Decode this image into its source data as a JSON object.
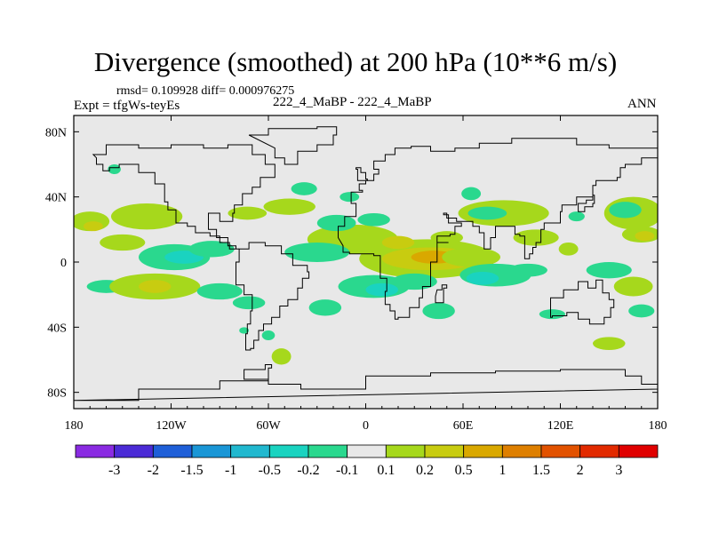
{
  "chart_data": {
    "type": "heatmap",
    "title": "Divergence (smoothed) at 200 hPa (10**6 m/s)",
    "stats_line": "rmsd= 0.109928 diff= 0.000976275",
    "experiment_label": "Expt = tfgWs-teyEs",
    "case_label": "222_4_MaBP - 222_4_MaBP",
    "season_label": "ANN",
    "x_axis": {
      "range": [
        -180,
        180
      ],
      "ticks": [
        -180,
        -120,
        -60,
        0,
        60,
        120,
        180
      ],
      "tick_labels": [
        "180",
        "120W",
        "60W",
        "0",
        "60E",
        "120E",
        "180"
      ]
    },
    "y_axis": {
      "range": [
        -90,
        90
      ],
      "ticks": [
        80,
        40,
        0,
        -40,
        -80
      ],
      "tick_labels": [
        "80N",
        "40N",
        "0",
        "40S",
        "80S"
      ]
    },
    "colorbar": {
      "labels": [
        "-3",
        "-2",
        "-1.5",
        "-1",
        "-0.5",
        "-0.2",
        "-0.1",
        "0.1",
        "0.2",
        "0.5",
        "1",
        "1.5",
        "2",
        "3"
      ],
      "colors": [
        "#8a2be2",
        "#4b2bd6",
        "#1f5fd8",
        "#1a96d6",
        "#21b8cf",
        "#1ad3c0",
        "#2ad88e",
        "#e8e8e8",
        "#a6d81c",
        "#c8cc10",
        "#d9a800",
        "#de7f00",
        "#e25200",
        "#e22a00",
        "#e00000"
      ]
    },
    "field_background": "#e8e8e8",
    "anomaly_patches": [
      {
        "lon": -170,
        "lat": 25,
        "rx": 12,
        "ry": 6,
        "bin": 8
      },
      {
        "lon": -168,
        "lat": 22,
        "rx": 6,
        "ry": 3,
        "bin": 9
      },
      {
        "lon": -135,
        "lat": 28,
        "rx": 22,
        "ry": 8,
        "bin": 8
      },
      {
        "lon": -150,
        "lat": 12,
        "rx": 14,
        "ry": 5,
        "bin": 8
      },
      {
        "lon": -118,
        "lat": 3,
        "rx": 22,
        "ry": 8,
        "bin": 6
      },
      {
        "lon": -112,
        "lat": 3,
        "rx": 12,
        "ry": 4,
        "bin": 5
      },
      {
        "lon": -95,
        "lat": 8,
        "rx": 14,
        "ry": 5,
        "bin": 6
      },
      {
        "lon": -160,
        "lat": -15,
        "rx": 12,
        "ry": 4,
        "bin": 6
      },
      {
        "lon": -130,
        "lat": -15,
        "rx": 28,
        "ry": 8,
        "bin": 8
      },
      {
        "lon": -130,
        "lat": -15,
        "rx": 10,
        "ry": 4,
        "bin": 9
      },
      {
        "lon": -90,
        "lat": -18,
        "rx": 14,
        "ry": 5,
        "bin": 6
      },
      {
        "lon": -72,
        "lat": -25,
        "rx": 10,
        "ry": 4,
        "bin": 6
      },
      {
        "lon": -155,
        "lat": 57,
        "rx": 4,
        "ry": 3,
        "bin": 6
      },
      {
        "lon": -73,
        "lat": 30,
        "rx": 12,
        "ry": 4,
        "bin": 8
      },
      {
        "lon": -47,
        "lat": 34,
        "rx": 16,
        "ry": 5,
        "bin": 8
      },
      {
        "lon": -38,
        "lat": 45,
        "rx": 8,
        "ry": 4,
        "bin": 6
      },
      {
        "lon": -10,
        "lat": 40,
        "rx": 6,
        "ry": 3,
        "bin": 6
      },
      {
        "lon": -8,
        "lat": 14,
        "rx": 28,
        "ry": 9,
        "bin": 8
      },
      {
        "lon": -30,
        "lat": 6,
        "rx": 20,
        "ry": 6,
        "bin": 6
      },
      {
        "lon": -18,
        "lat": 24,
        "rx": 12,
        "ry": 5,
        "bin": 6
      },
      {
        "lon": 5,
        "lat": 26,
        "rx": 10,
        "ry": 4,
        "bin": 6
      },
      {
        "lon": 38,
        "lat": 2,
        "rx": 42,
        "ry": 12,
        "bin": 8
      },
      {
        "lon": 40,
        "lat": 2,
        "rx": 30,
        "ry": 7,
        "bin": 9
      },
      {
        "lon": 42,
        "lat": 3,
        "rx": 14,
        "ry": 4,
        "bin": 10
      },
      {
        "lon": 20,
        "lat": 12,
        "rx": 10,
        "ry": 4,
        "bin": 9
      },
      {
        "lon": 65,
        "lat": 3,
        "rx": 18,
        "ry": 6,
        "bin": 8
      },
      {
        "lon": 50,
        "lat": 15,
        "rx": 10,
        "ry": 4,
        "bin": 8
      },
      {
        "lon": 5,
        "lat": -15,
        "rx": 22,
        "ry": 7,
        "bin": 6
      },
      {
        "lon": 10,
        "lat": -17,
        "rx": 10,
        "ry": 4,
        "bin": 5
      },
      {
        "lon": -25,
        "lat": -28,
        "rx": 10,
        "ry": 5,
        "bin": 6
      },
      {
        "lon": 30,
        "lat": -12,
        "rx": 14,
        "ry": 5,
        "bin": 6
      },
      {
        "lon": 45,
        "lat": -30,
        "rx": 10,
        "ry": 5,
        "bin": 6
      },
      {
        "lon": 80,
        "lat": -8,
        "rx": 22,
        "ry": 7,
        "bin": 6
      },
      {
        "lon": 72,
        "lat": -10,
        "rx": 10,
        "ry": 4,
        "bin": 5
      },
      {
        "lon": 100,
        "lat": -5,
        "rx": 12,
        "ry": 4,
        "bin": 6
      },
      {
        "lon": 85,
        "lat": 30,
        "rx": 28,
        "ry": 8,
        "bin": 8
      },
      {
        "lon": 75,
        "lat": 30,
        "rx": 12,
        "ry": 4,
        "bin": 6
      },
      {
        "lon": 65,
        "lat": 42,
        "rx": 6,
        "ry": 4,
        "bin": 6
      },
      {
        "lon": 105,
        "lat": 15,
        "rx": 14,
        "ry": 5,
        "bin": 8
      },
      {
        "lon": 125,
        "lat": 8,
        "rx": 6,
        "ry": 4,
        "bin": 8
      },
      {
        "lon": 165,
        "lat": 30,
        "rx": 18,
        "ry": 10,
        "bin": 8
      },
      {
        "lon": 160,
        "lat": 32,
        "rx": 10,
        "ry": 5,
        "bin": 6
      },
      {
        "lon": 170,
        "lat": 17,
        "rx": 12,
        "ry": 5,
        "bin": 8
      },
      {
        "lon": 172,
        "lat": 16,
        "rx": 6,
        "ry": 3,
        "bin": 9
      },
      {
        "lon": 150,
        "lat": -5,
        "rx": 14,
        "ry": 5,
        "bin": 6
      },
      {
        "lon": 165,
        "lat": -15,
        "rx": 12,
        "ry": 6,
        "bin": 8
      },
      {
        "lon": 170,
        "lat": -30,
        "rx": 8,
        "ry": 4,
        "bin": 6
      },
      {
        "lon": 150,
        "lat": -50,
        "rx": 10,
        "ry": 4,
        "bin": 8
      },
      {
        "lon": 115,
        "lat": -32,
        "rx": 8,
        "ry": 3,
        "bin": 6
      },
      {
        "lon": -52,
        "lat": -58,
        "rx": 6,
        "ry": 5,
        "bin": 8
      },
      {
        "lon": -60,
        "lat": -45,
        "rx": 4,
        "ry": 3,
        "bin": 6
      },
      {
        "lon": -75,
        "lat": -42,
        "rx": 3,
        "ry": 2,
        "bin": 6
      },
      {
        "lon": 130,
        "lat": 28,
        "rx": 5,
        "ry": 3,
        "bin": 6
      }
    ],
    "continent_outlines": [
      {
        "name": "north-america",
        "pts": [
          [
            -168,
            66
          ],
          [
            -160,
            72
          ],
          [
            -140,
            70
          ],
          [
            -120,
            72
          ],
          [
            -100,
            70
          ],
          [
            -85,
            72
          ],
          [
            -70,
            66
          ],
          [
            -62,
            60
          ],
          [
            -56,
            52
          ],
          [
            -65,
            46
          ],
          [
            -70,
            42
          ],
          [
            -76,
            35
          ],
          [
            -81,
            30
          ],
          [
            -82,
            25
          ],
          [
            -90,
            30
          ],
          [
            -97,
            27
          ],
          [
            -97,
            20
          ],
          [
            -92,
            15
          ],
          [
            -85,
            10
          ],
          [
            -80,
            8
          ],
          [
            -78,
            8
          ],
          [
            -84,
            12
          ],
          [
            -90,
            16
          ],
          [
            -96,
            18
          ],
          [
            -105,
            22
          ],
          [
            -110,
            24
          ],
          [
            -117,
            32
          ],
          [
            -122,
            37
          ],
          [
            -124,
            42
          ],
          [
            -124,
            48
          ],
          [
            -130,
            55
          ],
          [
            -140,
            60
          ],
          [
            -152,
            58
          ],
          [
            -158,
            56
          ],
          [
            -162,
            60
          ],
          [
            -166,
            64
          ]
        ]
      },
      {
        "name": "south-america",
        "pts": [
          [
            -78,
            8
          ],
          [
            -72,
            12
          ],
          [
            -62,
            10
          ],
          [
            -52,
            5
          ],
          [
            -45,
            -2
          ],
          [
            -36,
            -6
          ],
          [
            -35,
            -10
          ],
          [
            -39,
            -16
          ],
          [
            -42,
            -23
          ],
          [
            -48,
            -27
          ],
          [
            -53,
            -34
          ],
          [
            -58,
            -38
          ],
          [
            -63,
            -42
          ],
          [
            -66,
            -48
          ],
          [
            -69,
            -53
          ],
          [
            -71,
            -54
          ],
          [
            -74,
            -50
          ],
          [
            -74,
            -44
          ],
          [
            -73,
            -38
          ],
          [
            -71,
            -30
          ],
          [
            -70,
            -20
          ],
          [
            -75,
            -14
          ],
          [
            -80,
            -6
          ],
          [
            -80,
            0
          ],
          [
            -78,
            4
          ]
        ]
      },
      {
        "name": "africa-eurasia",
        "pts": [
          [
            -17,
            15
          ],
          [
            -17,
            22
          ],
          [
            -13,
            28
          ],
          [
            -6,
            36
          ],
          [
            -9,
            39
          ],
          [
            -9,
            43
          ],
          [
            -2,
            44
          ],
          [
            -4,
            48
          ],
          [
            0,
            50
          ],
          [
            5,
            54
          ],
          [
            8,
            57
          ],
          [
            5,
            62
          ],
          [
            12,
            66
          ],
          [
            18,
            70
          ],
          [
            28,
            71
          ],
          [
            40,
            68
          ],
          [
            55,
            70
          ],
          [
            70,
            73
          ],
          [
            90,
            76
          ],
          [
            110,
            76
          ],
          [
            130,
            72
          ],
          [
            150,
            70
          ],
          [
            170,
            70
          ],
          [
            180,
            68
          ],
          [
            180,
            64
          ],
          [
            170,
            60
          ],
          [
            160,
            58
          ],
          [
            157,
            52
          ],
          [
            155,
            50
          ],
          [
            142,
            47
          ],
          [
            140,
            40
          ],
          [
            130,
            35
          ],
          [
            121,
            31
          ],
          [
            120,
            24
          ],
          [
            110,
            20
          ],
          [
            108,
            12
          ],
          [
            105,
            9
          ],
          [
            103,
            5
          ],
          [
            101,
            2
          ],
          [
            98,
            8
          ],
          [
            98,
            16
          ],
          [
            95,
            17
          ],
          [
            92,
            22
          ],
          [
            88,
            22
          ],
          [
            80,
            15
          ],
          [
            77,
            8
          ],
          [
            73,
            18
          ],
          [
            70,
            22
          ],
          [
            66,
            25
          ],
          [
            57,
            25
          ],
          [
            56,
            27
          ],
          [
            50,
            30
          ],
          [
            48,
            29
          ],
          [
            51,
            24
          ],
          [
            56,
            24
          ],
          [
            59,
            22
          ],
          [
            55,
            17
          ],
          [
            52,
            16
          ],
          [
            44,
            12
          ],
          [
            51,
            12
          ],
          [
            44,
            0
          ],
          [
            40,
            -10
          ],
          [
            40,
            -15
          ],
          [
            35,
            -22
          ],
          [
            33,
            -28
          ],
          [
            27,
            -34
          ],
          [
            20,
            -35
          ],
          [
            18,
            -30
          ],
          [
            15,
            -26
          ],
          [
            12,
            -18
          ],
          [
            13,
            -10
          ],
          [
            9,
            -2
          ],
          [
            9,
            4
          ],
          [
            5,
            5
          ],
          [
            -5,
            5
          ],
          [
            -10,
            6
          ],
          [
            -14,
            10
          ]
        ]
      },
      {
        "name": "australia",
        "pts": [
          [
            114,
            -22
          ],
          [
            122,
            -17
          ],
          [
            131,
            -12
          ],
          [
            136,
            -12
          ],
          [
            137,
            -16
          ],
          [
            142,
            -11
          ],
          [
            146,
            -19
          ],
          [
            150,
            -23
          ],
          [
            153,
            -28
          ],
          [
            151,
            -34
          ],
          [
            147,
            -38
          ],
          [
            141,
            -38
          ],
          [
            138,
            -35
          ],
          [
            131,
            -31
          ],
          [
            124,
            -33
          ],
          [
            115,
            -34
          ],
          [
            114,
            -28
          ]
        ]
      },
      {
        "name": "antarctica",
        "pts": [
          [
            -180,
            -85
          ],
          [
            -140,
            -78
          ],
          [
            -90,
            -73
          ],
          [
            -60,
            -65
          ],
          [
            -58,
            -63
          ],
          [
            -62,
            -66
          ],
          [
            -75,
            -72
          ],
          [
            -60,
            -75
          ],
          [
            -40,
            -78
          ],
          [
            0,
            -70
          ],
          [
            40,
            -68
          ],
          [
            80,
            -67
          ],
          [
            120,
            -66
          ],
          [
            160,
            -70
          ],
          [
            170,
            -75
          ],
          [
            180,
            -78
          ]
        ]
      },
      {
        "name": "greenland",
        "pts": [
          [
            -72,
            78
          ],
          [
            -60,
            82
          ],
          [
            -30,
            83
          ],
          [
            -18,
            78
          ],
          [
            -20,
            72
          ],
          [
            -30,
            68
          ],
          [
            -42,
            60
          ],
          [
            -50,
            64
          ],
          [
            -56,
            70
          ]
        ]
      },
      {
        "name": "madagascar",
        "pts": [
          [
            44,
            -17
          ],
          [
            47,
            -14
          ],
          [
            50,
            -16
          ],
          [
            48,
            -25
          ],
          [
            45,
            -25
          ],
          [
            43,
            -21
          ]
        ]
      },
      {
        "name": "great-britain",
        "pts": [
          [
            -5,
            50
          ],
          [
            1,
            51
          ],
          [
            0,
            55
          ],
          [
            -3,
            58
          ],
          [
            -6,
            57
          ],
          [
            -5,
            54
          ]
        ]
      },
      {
        "name": "japan",
        "pts": [
          [
            131,
            31
          ],
          [
            135,
            34
          ],
          [
            140,
            36
          ],
          [
            141,
            41
          ],
          [
            140,
            38
          ],
          [
            136,
            36
          ],
          [
            131,
            34
          ]
        ]
      }
    ]
  }
}
